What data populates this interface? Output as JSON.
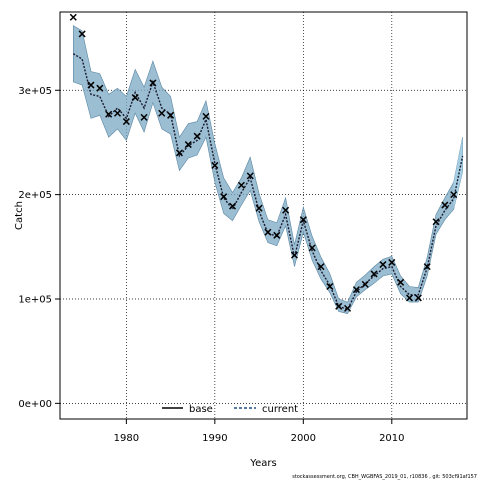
{
  "chart_data": {
    "type": "line",
    "xlabel": "Years",
    "ylabel": "Catch",
    "xlim": [
      1972.5,
      2018.5
    ],
    "ylim": [
      -15000,
      375000
    ],
    "xticks": [
      1980,
      1990,
      2000,
      2010
    ],
    "xtick_labels": [
      "1980",
      "1990",
      "2000",
      "2010"
    ],
    "yticks": [
      0,
      100000,
      200000,
      300000
    ],
    "ytick_labels": [
      "0e+00",
      "1e+05",
      "2e+05",
      "3e+05"
    ],
    "grid": true,
    "legend_position": "bottom-center",
    "legend": [
      {
        "label": "base",
        "style": "solid",
        "color": "#000000"
      },
      {
        "label": "current",
        "style": "dashed",
        "color": "#1f4e8c"
      }
    ],
    "series": [
      {
        "name": "base",
        "style": "points",
        "marker": "x",
        "x": [
          1974,
          1975,
          1976,
          1977,
          1978,
          1979,
          1980,
          1981,
          1982,
          1983,
          1984,
          1985,
          1986,
          1987,
          1988,
          1989,
          1990,
          1991,
          1992,
          1993,
          1994,
          1995,
          1996,
          1997,
          1998,
          1999,
          2000,
          2001,
          2002,
          2003,
          2004,
          2005,
          2006,
          2007,
          2008,
          2009,
          2010,
          2011,
          2012,
          2013,
          2014,
          2015,
          2016,
          2017
        ],
        "values": [
          370000,
          354000,
          305000,
          302000,
          277000,
          278000,
          270000,
          293000,
          274000,
          307000,
          278000,
          276000,
          240000,
          248000,
          256000,
          275000,
          228000,
          198000,
          189000,
          209000,
          218000,
          187000,
          164000,
          161000,
          185000,
          142000,
          176000,
          149000,
          131000,
          112000,
          93000,
          91000,
          109000,
          114000,
          124000,
          133000,
          135000,
          116000,
          101000,
          101000,
          131000,
          174000,
          190000,
          200000
        ]
      },
      {
        "name": "current",
        "style": "dashed",
        "x": [
          1974,
          1975,
          1976,
          1977,
          1978,
          1979,
          1980,
          1981,
          1982,
          1983,
          1984,
          1985,
          1986,
          1987,
          1988,
          1989,
          1990,
          1991,
          1992,
          1993,
          1994,
          1995,
          1996,
          1997,
          1998,
          1999,
          2000,
          2001,
          2002,
          2003,
          2004,
          2005,
          2006,
          2007,
          2008,
          2009,
          2010,
          2011,
          2012,
          2013,
          2014,
          2015,
          2016,
          2017,
          2018
        ],
        "values": [
          335000,
          330000,
          296000,
          294000,
          275000,
          283000,
          273000,
          298000,
          283000,
          308000,
          283000,
          277000,
          237000,
          247000,
          252000,
          272000,
          230000,
          197000,
          186000,
          202000,
          216000,
          184000,
          163000,
          160000,
          181000,
          140000,
          175000,
          146000,
          127000,
          113000,
          93000,
          90000,
          107000,
          115000,
          122000,
          129000,
          131000,
          112000,
          104000,
          104000,
          130000,
          170000,
          185000,
          196000,
          237000
        ],
        "lower": [
          308000,
          305000,
          273000,
          276000,
          255000,
          263000,
          252000,
          278000,
          260000,
          288000,
          263000,
          258000,
          223000,
          235000,
          238000,
          255000,
          212000,
          182000,
          175000,
          190000,
          204000,
          174000,
          154000,
          151000,
          170000,
          131000,
          164000,
          137000,
          119000,
          106000,
          88000,
          86000,
          102000,
          109000,
          115000,
          122000,
          124000,
          105000,
          97000,
          97000,
          122000,
          162000,
          176000,
          186000,
          222000
        ],
        "upper": [
          362000,
          357000,
          318000,
          316000,
          296000,
          302000,
          294000,
          320000,
          303000,
          328000,
          303000,
          294000,
          255000,
          268000,
          270000,
          290000,
          249000,
          216000,
          202000,
          216000,
          236000,
          201000,
          176000,
          173000,
          197000,
          152000,
          188000,
          160000,
          140000,
          124000,
          100000,
          97000,
          116000,
          123000,
          131000,
          138000,
          141000,
          122000,
          112000,
          111000,
          140000,
          181000,
          197000,
          212000,
          255000
        ]
      }
    ],
    "band_color": "#7aa8c4",
    "band_light_color": "#a9d1e6",
    "footnote": "stockassessment.org, CBH_WGBFAS_2019_01, r10836 , git: 503cf91af157"
  }
}
